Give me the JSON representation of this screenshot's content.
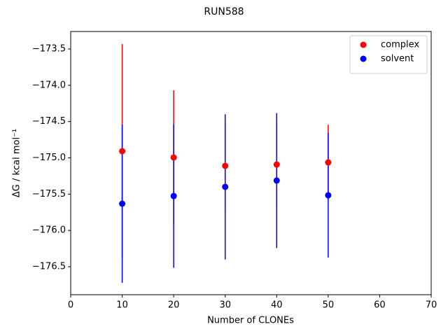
{
  "chart_data": {
    "type": "errorbar-scatter",
    "title": "RUN588",
    "xlabel": "Number of CLONEs",
    "ylabel": "ΔG / kcal mol⁻¹",
    "x": [
      10,
      20,
      30,
      40,
      50
    ],
    "series": [
      {
        "name": "complex",
        "color": "#ff0000",
        "values": [
          -174.908,
          -174.995,
          -175.111,
          -175.092,
          -175.063
        ],
        "errors": [
          1.476,
          0.926,
          0.6,
          0.6,
          0.52
        ]
      },
      {
        "name": "solvent",
        "color": "#0000ff",
        "values": [
          -175.632,
          -175.526,
          -175.4,
          -175.313,
          -175.516
        ],
        "errors": [
          1.09,
          0.99,
          1.0,
          0.93,
          0.86
        ]
      }
    ],
    "xlim": [
      0,
      70
    ],
    "xticks": [
      0,
      10,
      20,
      30,
      40,
      50,
      60,
      70
    ],
    "ylim": [
      -176.886,
      -173.259
    ],
    "yticks": [
      {
        "value": -176.5,
        "label": "−176.5"
      },
      {
        "value": -176.0,
        "label": "−176.0"
      },
      {
        "value": -175.5,
        "label": "−175.5"
      },
      {
        "value": -175.0,
        "label": "−175.0"
      },
      {
        "value": -174.5,
        "label": "−174.5"
      },
      {
        "value": -174.0,
        "label": "−174.0"
      },
      {
        "value": -173.5,
        "label": "−173.5"
      }
    ],
    "legend": "upper right"
  }
}
